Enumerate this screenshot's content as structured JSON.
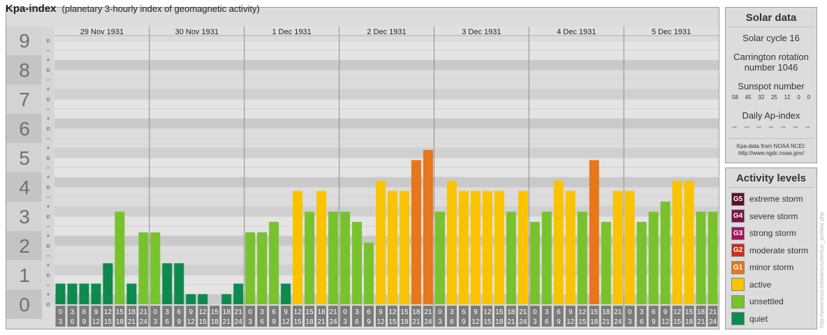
{
  "header": {
    "title": "Kpa-index",
    "subtitle": "(planetary 3-hourly index of geomagnetic activity)"
  },
  "chart_data": {
    "type": "bar",
    "ylim": [
      0,
      9
    ],
    "y_ticks": [
      "0",
      "1",
      "2",
      "3",
      "4",
      "5",
      "6",
      "7",
      "8",
      "9"
    ],
    "sub_ticks": [
      "o",
      "+",
      "–"
    ],
    "days": [
      "29 Nov 1931",
      "30 Nov 1931",
      "1 Dec 1931",
      "2 Dec 1931",
      "3 Dec 1931",
      "4 Dec 1931",
      "5 Dec 1931"
    ],
    "intervals": [
      [
        "0",
        "3"
      ],
      [
        "3",
        "6"
      ],
      [
        "6",
        "9"
      ],
      [
        "9",
        "12"
      ],
      [
        "12",
        "15"
      ],
      [
        "15",
        "18"
      ],
      [
        "18",
        "21"
      ],
      [
        "21",
        "24"
      ]
    ],
    "values": [
      [
        0.67,
        0.67,
        0.67,
        0.67,
        1.33,
        3.0,
        0.67,
        2.33
      ],
      [
        2.33,
        1.33,
        1.33,
        0.33,
        0.33,
        0.0,
        0.33,
        0.67
      ],
      [
        2.33,
        2.33,
        2.67,
        0.67,
        3.67,
        3.0,
        3.67,
        3.0
      ],
      [
        3.0,
        2.67,
        2.0,
        4.0,
        3.67,
        3.67,
        4.67,
        5.0
      ],
      [
        3.0,
        4.0,
        3.67,
        3.67,
        3.67,
        3.67,
        3.0,
        3.67
      ],
      [
        2.67,
        3.0,
        4.0,
        3.67,
        3.0,
        4.67,
        2.67,
        3.67
      ],
      [
        3.67,
        2.67,
        3.0,
        3.33,
        4.0,
        4.0,
        3.0,
        3.0
      ]
    ],
    "grid": true
  },
  "solar": {
    "title": "Solar data",
    "cycle": "Solar cycle 16",
    "carrington_line1": "Carrington rotation",
    "carrington_line2": "number 1046",
    "sunspot_label": "Sunspot number",
    "sunspots": [
      "58",
      "45",
      "32",
      "25",
      "12",
      "0",
      "0"
    ],
    "ap_label": "Daily Ap-index",
    "ap_values": [
      "--",
      "--",
      "--",
      "--",
      "--",
      "--",
      "--"
    ],
    "credit_line1": "Kpa-data from NOAA NCEI:",
    "credit_line2": "http://www.ngdc.noaa.gov/"
  },
  "activity": {
    "title": "Activity levels",
    "levels": [
      {
        "code": "G5",
        "label": "extreme storm",
        "color": "#5a0f2e"
      },
      {
        "code": "G4",
        "label": "severe storm",
        "color": "#7d1248"
      },
      {
        "code": "G3",
        "label": "strong storm",
        "color": "#a3125f"
      },
      {
        "code": "G2",
        "label": "moderate storm",
        "color": "#d22d1e"
      },
      {
        "code": "G1",
        "label": "minor storm",
        "color": "#e8761b"
      },
      {
        "code": "",
        "label": "active",
        "color": "#f9c300"
      },
      {
        "code": "",
        "label": "unsettled",
        "color": "#78c22e"
      },
      {
        "code": "",
        "label": "quiet",
        "color": "#0f8a4f"
      }
    ]
  },
  "side_credit": "http://www.tesis.lebedev.ru/en/sun_archive.php"
}
